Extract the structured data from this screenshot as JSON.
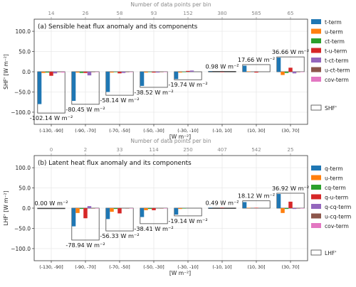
{
  "chart_data": [
    {
      "type": "bar",
      "title": "(a) Sensible heat flux anomaly and its components",
      "top_axis_label": "Number of data points per bin",
      "top_tick_labels": [
        "14",
        "26",
        "58",
        "93",
        "152",
        "380",
        "585",
        "65"
      ],
      "xlabel": "[W m⁻²]",
      "ylabel": "SHF' [W m⁻²]",
      "ylim": [
        -130,
        130
      ],
      "yticks": [
        -100,
        -50,
        0,
        50,
        100
      ],
      "ytick_labels": [
        "−100.0",
        "−50.0",
        "0.0",
        "50.0",
        "100.0"
      ],
      "categories": [
        "(-130, -90]",
        "(-90, -70]",
        "(-70, -50]",
        "(-50, -30]",
        "(-30, -10]",
        "(-10, 10]",
        "(10, 30]",
        "(30, 70]"
      ],
      "total_values": [
        -102.14,
        -80.45,
        -58.14,
        -38.52,
        -19.74,
        0.98,
        17.66,
        36.66
      ],
      "total_labels": [
        "-102.14 W m⁻²",
        "-80.45 W m⁻²",
        "-58.14 W m⁻²",
        "-38.52 W m⁻²",
        "-19.74 W m⁻²",
        "0.98 W m⁻²",
        "17.66 W m⁻²",
        "36.66 W m⁻²"
      ],
      "total_legend": "SHF'",
      "series": [
        {
          "name": "t-term",
          "color": "#1f77b4",
          "values": [
            -80,
            -72,
            -50,
            -35,
            -18,
            1,
            15,
            35
          ]
        },
        {
          "name": "u-term",
          "color": "#ff7f0e",
          "values": [
            -3,
            -2,
            -2,
            -2,
            -2,
            0,
            1,
            -8
          ]
        },
        {
          "name": "ct-term",
          "color": "#2ca02c",
          "values": [
            -2,
            -3,
            -1,
            -1,
            -1,
            0,
            0,
            -3
          ]
        },
        {
          "name": "t-u-term",
          "color": "#d62728",
          "values": [
            -10,
            -3,
            -4,
            -2,
            2,
            -1,
            -2,
            10
          ]
        },
        {
          "name": "t-ct-term",
          "color": "#9467bd",
          "values": [
            -4,
            -9,
            -3,
            -2,
            3,
            0,
            0,
            -4
          ]
        },
        {
          "name": "u-ct-term",
          "color": "#8c564b",
          "values": [
            -1,
            -1,
            -1,
            -1,
            0,
            0,
            0,
            -1
          ]
        },
        {
          "name": "cov-term",
          "color": "#e377c2",
          "values": [
            -2,
            -1,
            -1,
            -1,
            0,
            0,
            0,
            -1
          ]
        }
      ]
    },
    {
      "type": "bar",
      "title": "(b) Latent heat flux anomaly and its components",
      "top_axis_label": "Number of data points per bin",
      "top_tick_labels": [
        "0",
        "2",
        "33",
        "114",
        "250",
        "407",
        "542",
        "25"
      ],
      "xlabel": "[W m⁻²]",
      "ylabel": "LHF' [W m⁻²]",
      "ylim": [
        -130,
        130
      ],
      "yticks": [
        -100,
        -50,
        0,
        50,
        100
      ],
      "ytick_labels": [
        "−100.0",
        "−50.0",
        "0.0",
        "50.0",
        "100.0"
      ],
      "categories": [
        "(-130, -90]",
        "(-90, -70]",
        "(-70, -50]",
        "(-50, -30]",
        "(-30, -10]",
        "(-10, 10]",
        "(10, 30]",
        "(30, 70]"
      ],
      "total_values": [
        0.0,
        -78.94,
        -56.33,
        -38.41,
        -19.14,
        0.49,
        18.12,
        36.92
      ],
      "total_labels": [
        "0.00 W m⁻²",
        "-78.94 W m⁻²",
        "-56.33 W m⁻²",
        "-38.41 W m⁻²",
        "-19.14 W m⁻²",
        "0.49 W m⁻²",
        "18.12 W m⁻²",
        "36.92 W m⁻²"
      ],
      "total_legend": "LHF'",
      "series": [
        {
          "name": "q-term",
          "color": "#1f77b4",
          "values": [
            0,
            -45,
            -27,
            -22,
            -16,
            1,
            15,
            35
          ]
        },
        {
          "name": "u-term",
          "color": "#ff7f0e",
          "values": [
            0,
            -12,
            -9,
            -5,
            -2,
            0,
            1,
            -12
          ]
        },
        {
          "name": "cq-term",
          "color": "#2ca02c",
          "values": [
            0,
            -2,
            -2,
            -2,
            -1,
            0,
            0,
            -2
          ]
        },
        {
          "name": "q-u-term",
          "color": "#d62728",
          "values": [
            0,
            -25,
            -13,
            -5,
            0,
            1,
            1,
            16
          ]
        },
        {
          "name": "q-cq-term",
          "color": "#9467bd",
          "values": [
            0,
            5,
            0,
            0,
            0,
            0,
            0,
            -2
          ]
        },
        {
          "name": "u-cq-term",
          "color": "#8c564b",
          "values": [
            0,
            -1,
            -1,
            -1,
            0,
            0,
            0,
            -1
          ]
        },
        {
          "name": "cov-term",
          "color": "#e377c2",
          "values": [
            0,
            -1,
            -1,
            -1,
            0,
            0,
            0,
            -1
          ]
        }
      ]
    }
  ]
}
